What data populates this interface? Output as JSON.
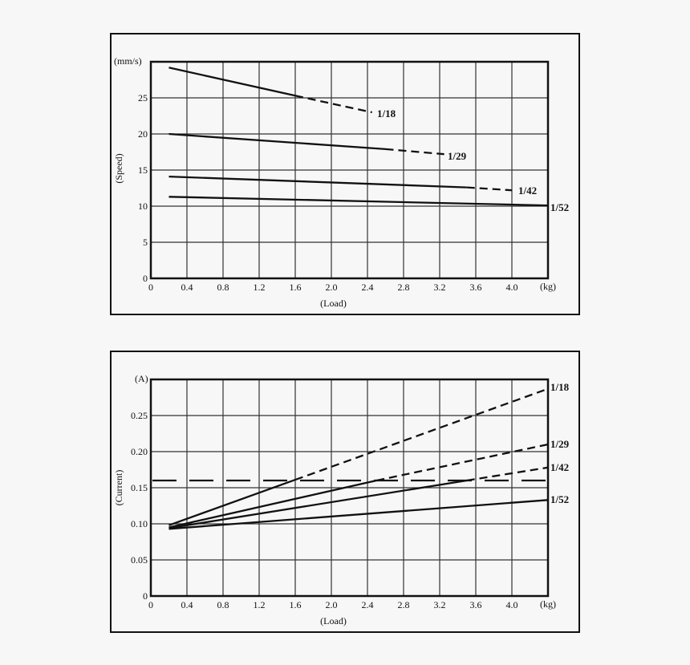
{
  "chart_data": [
    {
      "type": "line",
      "title": "",
      "xlabel": "(Load)",
      "x_unit": "(kg)",
      "ylabel": "(Speed)",
      "y_unit": "(mm/s)",
      "xlim": [
        0,
        4.4
      ],
      "ylim": [
        0,
        30
      ],
      "grid": true,
      "x_ticks": [
        "0",
        "0.4",
        "0.8",
        "1.2",
        "1.6",
        "2.0",
        "2.4",
        "2.8",
        "3.2",
        "3.6",
        "4.0"
      ],
      "y_ticks": [
        "0",
        "5",
        "10",
        "15",
        "20",
        "25"
      ],
      "series": [
        {
          "name": "1/18",
          "x": [
            0.2,
            1.6,
            2.45
          ],
          "y": [
            29.2,
            25.3,
            23.0
          ],
          "solid_until": 1.6,
          "dashed_after": true
        },
        {
          "name": "1/29",
          "x": [
            0.2,
            2.6,
            3.25
          ],
          "y": [
            20.0,
            17.9,
            17.2
          ],
          "solid_until": 2.6,
          "dashed_after": true
        },
        {
          "name": "1/42",
          "x": [
            0.2,
            3.5,
            4.0
          ],
          "y": [
            14.1,
            12.6,
            12.2
          ],
          "solid_until": 3.5,
          "dashed_after": true
        },
        {
          "name": "1/52",
          "x": [
            0.2,
            4.4
          ],
          "y": [
            11.3,
            10.1
          ],
          "solid_until": 4.4,
          "dashed_after": false
        }
      ]
    },
    {
      "type": "line",
      "title": "",
      "xlabel": "(Load)",
      "x_unit": "(kg)",
      "ylabel": "(Current)",
      "y_unit": "(A)",
      "xlim": [
        0,
        4.4
      ],
      "ylim": [
        0,
        0.3
      ],
      "grid": true,
      "x_ticks": [
        "0",
        "0.4",
        "0.8",
        "1.2",
        "1.6",
        "2.0",
        "2.4",
        "2.8",
        "3.2",
        "3.6",
        "4.0"
      ],
      "y_ticks": [
        "0",
        "0.05",
        "0.10",
        "0.15",
        "0.20",
        "0.25"
      ],
      "reference_line": {
        "y": 0.16,
        "style": "long-dash"
      },
      "series": [
        {
          "name": "1/18",
          "x": [
            0.2,
            1.6,
            4.4
          ],
          "y": [
            0.098,
            0.161,
            0.287
          ],
          "solid_until": 1.6,
          "dashed_after": true
        },
        {
          "name": "1/29",
          "x": [
            0.2,
            2.5,
            4.4
          ],
          "y": [
            0.095,
            0.16,
            0.21
          ],
          "solid_until": 2.5,
          "dashed_after": true
        },
        {
          "name": "1/42",
          "x": [
            0.2,
            3.5,
            4.4
          ],
          "y": [
            0.094,
            0.16,
            0.178
          ],
          "solid_until": 3.5,
          "dashed_after": true
        },
        {
          "name": "1/52",
          "x": [
            0.2,
            4.4
          ],
          "y": [
            0.093,
            0.133
          ],
          "solid_until": 4.4,
          "dashed_after": false
        }
      ]
    }
  ],
  "speed_chart": {
    "unit": "(mm/s)",
    "ylabel": "(Speed)",
    "xlabel": "(Load)",
    "xunit": "(kg)",
    "series_labels": [
      "1/18",
      "1/29",
      "1/42",
      "1/52"
    ]
  },
  "current_chart": {
    "unit": "(A)",
    "ylabel": "(Current)",
    "xlabel": "(Load)",
    "xunit": "(kg)",
    "series_labels": [
      "1/18",
      "1/29",
      "1/42",
      "1/52"
    ]
  }
}
